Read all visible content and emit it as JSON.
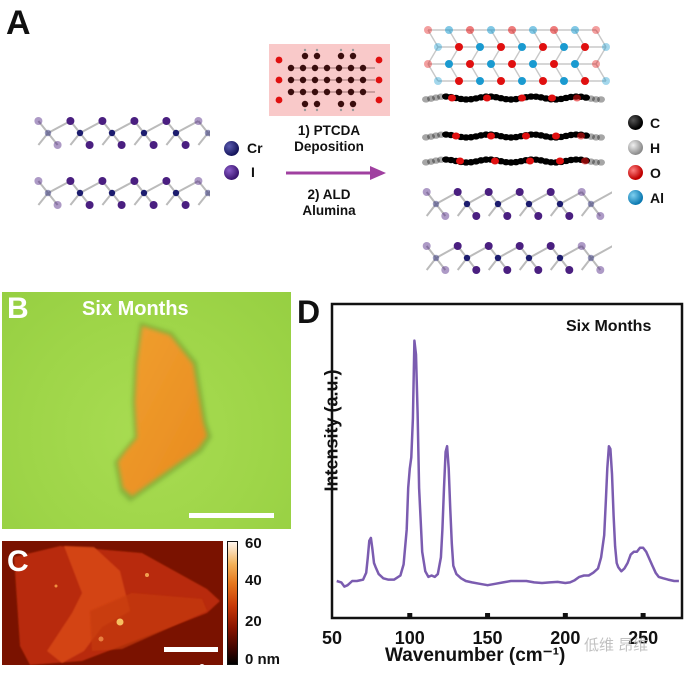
{
  "figure": {
    "panel_a": {
      "letter": "A",
      "legend_left": [
        {
          "symbol": "Cr",
          "color": "#1c1c6e"
        },
        {
          "symbol": "I",
          "color": "#4a1f80"
        }
      ],
      "molecule_box_color": "#f9c9c9",
      "step1_line1": "1) PTCDA",
      "step1_line2": "Deposition",
      "step2_line1": "2) ALD",
      "step2_line2": "Alumina",
      "arrow_color": "#a040a0",
      "legend_right": [
        {
          "symbol": "C",
          "color": "#000000"
        },
        {
          "symbol": "H",
          "color": "#b8b8b8"
        },
        {
          "symbol": "O",
          "color": "#e01010"
        },
        {
          "symbol": "Al",
          "color": "#1a9ad0"
        }
      ]
    },
    "panel_b": {
      "letter": "B",
      "title": "Six Months"
    },
    "panel_c": {
      "letter": "C",
      "colorbar": {
        "ticks": [
          "60",
          "40",
          "20",
          "0 nm"
        ],
        "min": 0,
        "max": 60,
        "unit": "nm"
      }
    },
    "panel_d": {
      "letter": "D",
      "annotation": "Six Months"
    },
    "watermark": "低维 昂维"
  },
  "chart_data": {
    "type": "line",
    "title": "Six Months",
    "xlabel": "Wavenumber (cm⁻¹)",
    "ylabel": "Intensity (a.u.)",
    "xlim": [
      50,
      275
    ],
    "ylim": [
      0,
      1
    ],
    "xticks": [
      50,
      100,
      150,
      200,
      250
    ],
    "yticks": [],
    "grid": false,
    "legend": "none",
    "series": [
      {
        "name": "Six Months",
        "color": "#7b5cb0",
        "x": [
          53,
          56,
          58,
          60,
          63,
          66,
          70,
          72,
          73,
          74,
          75,
          76,
          77,
          78,
          80,
          83,
          86,
          90,
          94,
          96,
          98,
          99,
          100,
          101,
          102,
          103,
          104,
          105,
          106,
          108,
          110,
          112,
          114,
          116,
          118,
          120,
          121,
          122,
          123,
          124,
          125,
          126,
          127,
          128,
          130,
          133,
          136,
          140,
          145,
          150,
          155,
          160,
          165,
          170,
          175,
          180,
          185,
          190,
          195,
          200,
          203,
          206,
          209,
          212,
          215,
          218,
          221,
          223,
          225,
          226,
          227,
          228,
          229,
          230,
          231,
          232,
          233,
          234,
          236,
          238,
          240,
          242,
          244,
          246,
          248,
          250,
          252,
          254,
          256,
          258,
          260,
          263,
          266,
          270,
          273
        ],
        "y": [
          0.115,
          0.11,
          0.095,
          0.1,
          0.115,
          0.115,
          0.12,
          0.145,
          0.2,
          0.26,
          0.27,
          0.23,
          0.18,
          0.165,
          0.14,
          0.125,
          0.12,
          0.12,
          0.135,
          0.175,
          0.3,
          0.45,
          0.52,
          0.56,
          0.7,
          0.98,
          0.93,
          0.72,
          0.45,
          0.22,
          0.15,
          0.13,
          0.135,
          0.13,
          0.14,
          0.2,
          0.3,
          0.45,
          0.58,
          0.6,
          0.52,
          0.38,
          0.25,
          0.17,
          0.14,
          0.125,
          0.115,
          0.11,
          0.105,
          0.1,
          0.105,
          0.11,
          0.115,
          0.115,
          0.115,
          0.11,
          0.108,
          0.11,
          0.112,
          0.108,
          0.11,
          0.118,
          0.13,
          0.135,
          0.135,
          0.145,
          0.16,
          0.2,
          0.28,
          0.4,
          0.52,
          0.6,
          0.59,
          0.5,
          0.35,
          0.24,
          0.18,
          0.165,
          0.15,
          0.16,
          0.18,
          0.21,
          0.22,
          0.22,
          0.235,
          0.235,
          0.22,
          0.195,
          0.17,
          0.145,
          0.13,
          0.125,
          0.12,
          0.115,
          0.115
        ]
      }
    ],
    "peaks": [
      {
        "x": 76,
        "label": ""
      },
      {
        "x": 103,
        "label": ""
      },
      {
        "x": 124,
        "label": ""
      },
      {
        "x": 230,
        "label": ""
      },
      {
        "x": 250,
        "label": ""
      }
    ]
  }
}
